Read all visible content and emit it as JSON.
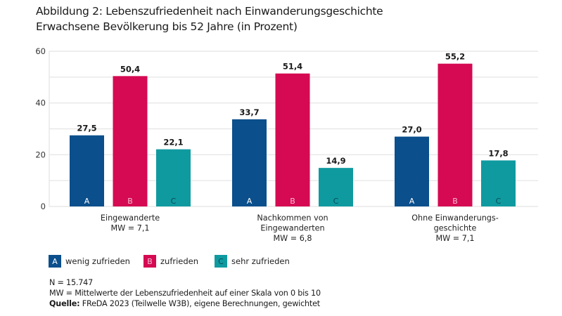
{
  "chart_data": {
    "type": "bar",
    "title": "Abbildung 2: Lebenszufriedenheit nach Einwanderungsgeschichte",
    "subtitle": "Erwachsene Bevölkerung bis 52 Jahre (in Prozent)",
    "categories": [
      [
        "Eingewanderte",
        "MW = 7,1"
      ],
      [
        "Nachkommen von",
        "Eingewanderten",
        "MW = 6,8"
      ],
      [
        "Ohne Einwanderungs-",
        "geschichte",
        "MW = 7,1"
      ]
    ],
    "series": [
      {
        "name": "wenig zufrieden",
        "key": "A",
        "color": "#0b4f8c",
        "letter_color": "#ffffff",
        "values": [
          27.5,
          33.7,
          27.0
        ],
        "labels": [
          "27,5",
          "33,7",
          "27,0"
        ]
      },
      {
        "name": "zufrieden",
        "key": "B",
        "color": "#d50a52",
        "letter_color": "#f7bfd3",
        "values": [
          50.4,
          51.4,
          55.2
        ],
        "labels": [
          "50,4",
          "51,4",
          "55,2"
        ]
      },
      {
        "name": "sehr zufrieden",
        "key": "C",
        "color": "#0f9aa0",
        "letter_color": "#0b4a55",
        "values": [
          22.1,
          14.9,
          17.8
        ],
        "labels": [
          "22,1",
          "14,9",
          "17,8"
        ]
      }
    ],
    "ylim": [
      0,
      60
    ],
    "yticks": [
      0,
      20,
      40,
      60
    ],
    "grid": true,
    "grid_step": 10,
    "legend_position": "bottom-left"
  },
  "notes": {
    "n": "N = 15.747",
    "mw": "MW = Mittelwerte der Lebenszufriedenheit auf einer Skala von 0 bis 10",
    "source_label": "Quelle:",
    "source": " FReDA 2023 (Teilwelle W3B), eigene Berechnungen, gewichtet"
  }
}
